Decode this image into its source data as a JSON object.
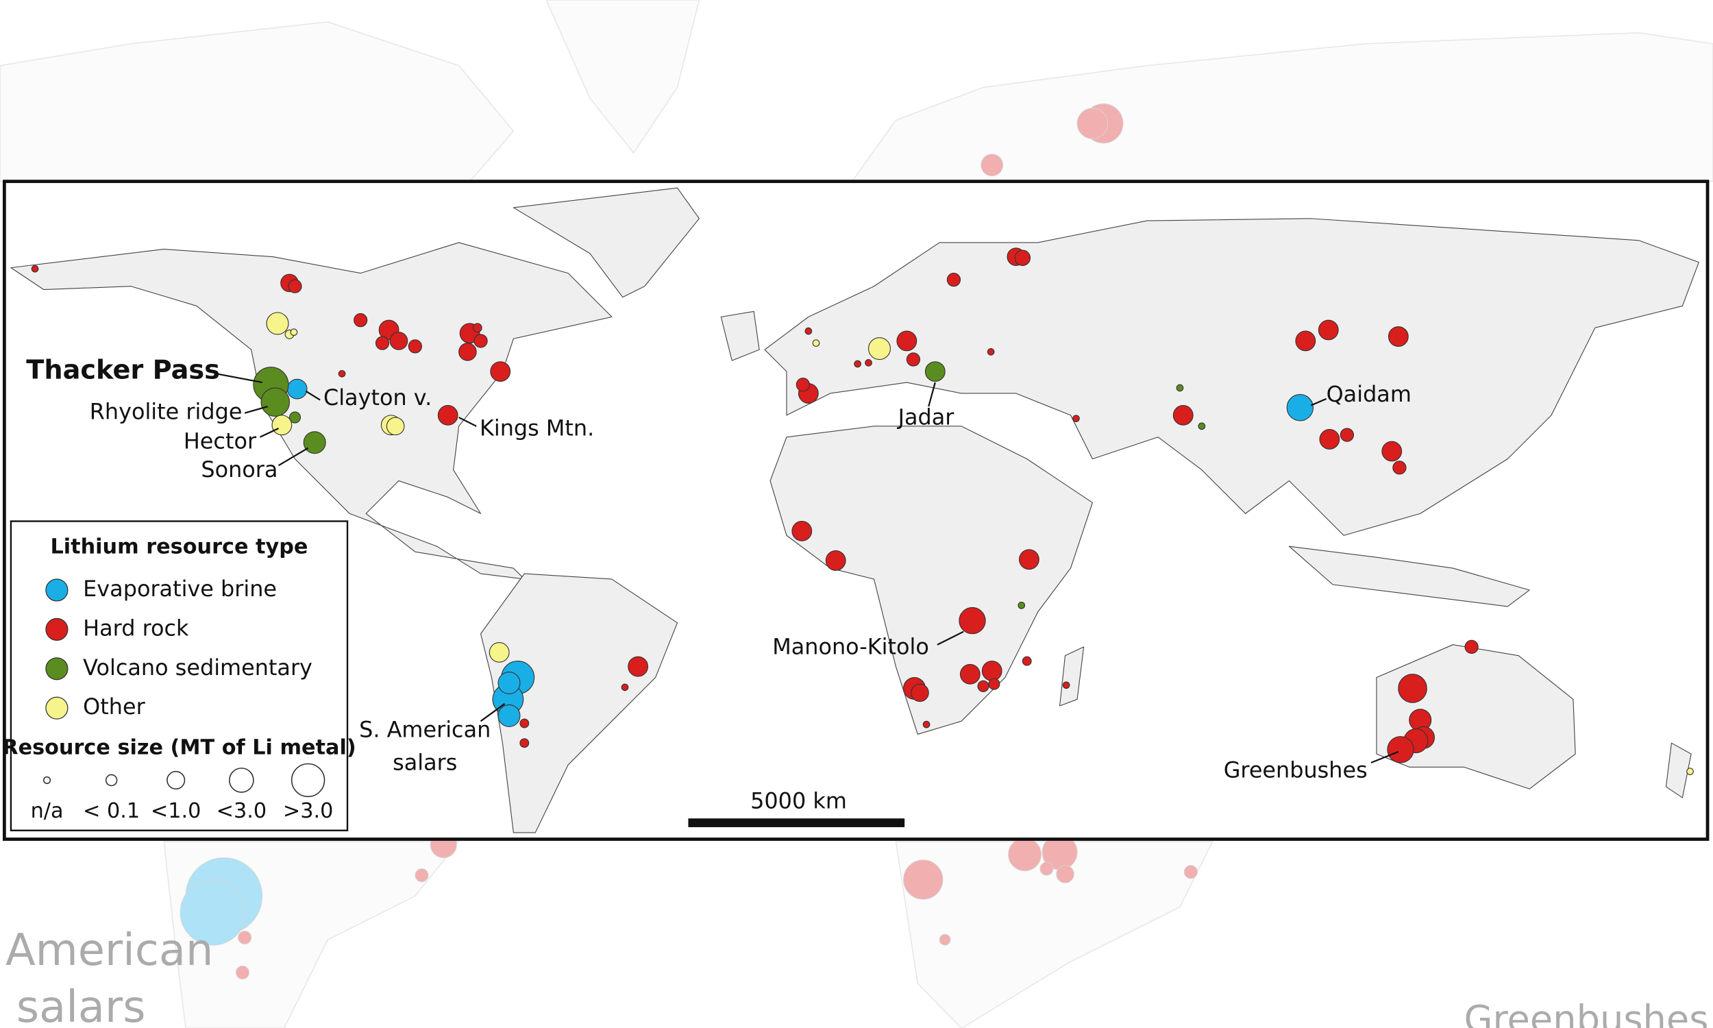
{
  "places": {
    "thacker": "Thacker Pass",
    "clayton": "Clayton v.",
    "rhyolite": "Rhyolite ridge",
    "hector": "Hector",
    "sonora": "Sonora",
    "kings": "Kings Mtn.",
    "jadar": "Jadar",
    "qaidam": "Qaidam",
    "manono": "Manono-Kitolo",
    "salars": [
      "S. American",
      "salars"
    ],
    "greenbushes": "Greenbushes"
  },
  "legend": {
    "title": "Lithium resource type",
    "items": [
      {
        "name": "Evaporative brine",
        "color": "#1aaee6"
      },
      {
        "name": "Hard rock",
        "color": "#d91e1e"
      },
      {
        "name": "Volcano sedimentary",
        "color": "#5b8c1f"
      },
      {
        "name": "Other",
        "color": "#f7f48c"
      }
    ],
    "size_title": "Resource size (MT of Li metal)",
    "sizes": [
      "n/a",
      "< 0.1",
      "<1.0",
      "<3.0",
      ">3.0"
    ]
  },
  "scale_bar": "5000 km",
  "background_labels": [
    "American",
    "salars",
    "Greenbushes"
  ]
}
